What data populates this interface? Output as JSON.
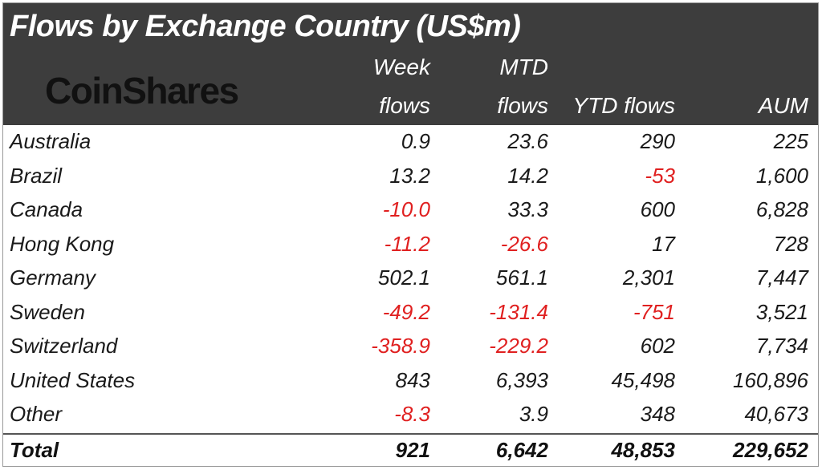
{
  "title": "Flows by Exchange Country (US$m)",
  "logo": "CoinShares",
  "columns": {
    "week_line1": "Week",
    "week_line2": "flows",
    "mtd_line1": "MTD",
    "mtd_line2": "flows",
    "ytd": "YTD flows",
    "aum": "AUM"
  },
  "rows": [
    {
      "country": "Australia",
      "week": "0.9",
      "mtd": "23.6",
      "ytd": "290",
      "aum": "225"
    },
    {
      "country": "Brazil",
      "week": "13.2",
      "mtd": "14.2",
      "ytd": "-53",
      "aum": "1,600"
    },
    {
      "country": "Canada",
      "week": "-10.0",
      "mtd": "33.3",
      "ytd": "600",
      "aum": "6,828"
    },
    {
      "country": "Hong Kong",
      "week": "-11.2",
      "mtd": "-26.6",
      "ytd": "17",
      "aum": "728"
    },
    {
      "country": "Germany",
      "week": "502.1",
      "mtd": "561.1",
      "ytd": "2,301",
      "aum": "7,447"
    },
    {
      "country": "Sweden",
      "week": "-49.2",
      "mtd": "-131.4",
      "ytd": "-751",
      "aum": "3,521"
    },
    {
      "country": "Switzerland",
      "week": "-358.9",
      "mtd": "-229.2",
      "ytd": "602",
      "aum": "7,734"
    },
    {
      "country": "United States",
      "week": "843",
      "mtd": "6,393",
      "ytd": "45,498",
      "aum": "160,896"
    },
    {
      "country": "Other",
      "week": "-8.3",
      "mtd": "3.9",
      "ytd": "348",
      "aum": "40,673"
    }
  ],
  "total": {
    "label": "Total",
    "week": "921",
    "mtd": "6,642",
    "ytd": "48,853",
    "aum": "229,652"
  },
  "colors": {
    "header_bg": "#3d3d3d",
    "negative": "#e02020",
    "text": "#1a1a1a"
  }
}
